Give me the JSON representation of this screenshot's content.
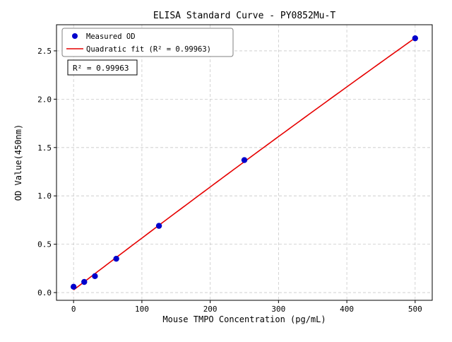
{
  "chart_data": {
    "type": "scatter",
    "title": "ELISA Standard Curve - PY0852Mu-T",
    "xlabel": "Mouse TMPO Concentration (pg/mL)",
    "ylabel": "OD Value(450nm)",
    "x": [
      0,
      15.6,
      31.25,
      62.5,
      125,
      250,
      500
    ],
    "y": [
      0.06,
      0.11,
      0.17,
      0.35,
      0.69,
      1.37,
      2.63
    ],
    "fit": {
      "type": "quadratic",
      "r_squared": 0.99963
    },
    "legend": {
      "measured_label": "Measured OD",
      "fit_label": "Quadratic fit (R² = 0.99963)"
    },
    "annotation": "R² = 0.99963",
    "xlim": [
      -25,
      525
    ],
    "ylim": [
      -0.08,
      2.77
    ],
    "x_ticks": [
      0,
      100,
      200,
      300,
      400,
      500
    ],
    "y_ticks": [
      0.0,
      0.5,
      1.0,
      1.5,
      2.0,
      2.5
    ],
    "grid": true,
    "legend_position": "upper left",
    "colors": {
      "points": "#0000cc",
      "fit_line": "#e60000",
      "grid": "#c8c8c8",
      "axes": "#000000"
    }
  }
}
